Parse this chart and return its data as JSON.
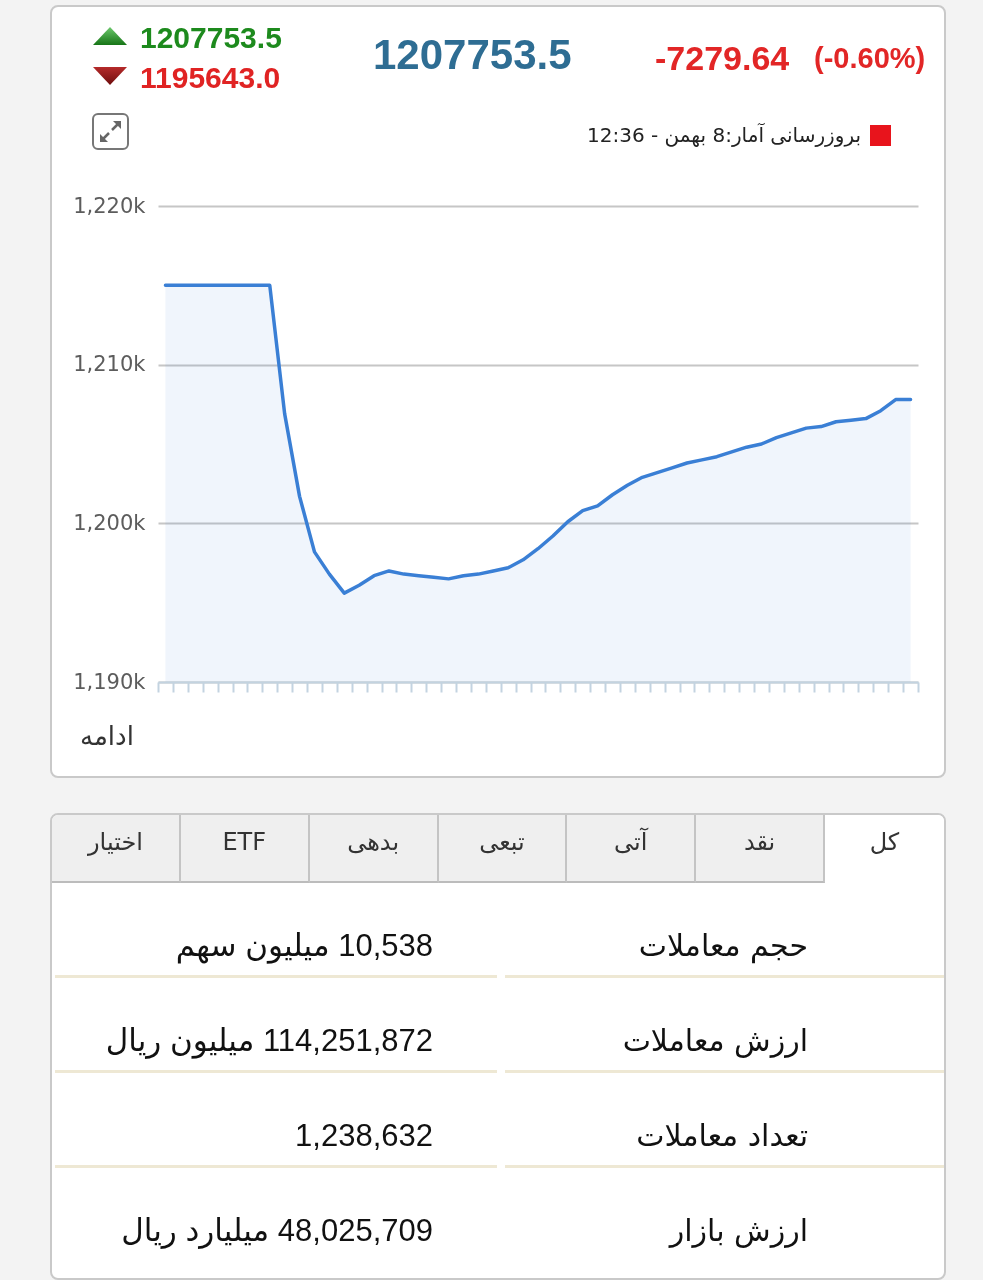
{
  "chart_data": [
    {
      "type": "area",
      "categories": [
        null,
        null,
        null,
        null,
        null,
        null,
        null,
        null,
        null,
        null,
        null,
        null,
        null,
        null,
        null,
        null,
        null,
        null,
        null,
        null,
        null,
        null,
        null,
        null,
        null,
        null,
        null,
        null,
        null,
        null,
        null,
        null,
        null,
        null,
        null,
        null,
        null,
        null,
        null,
        null,
        null,
        null,
        null,
        null,
        null,
        null,
        null,
        null,
        null,
        null,
        null
      ],
      "series": [
        {
          "color": "#3a7fd5",
          "values": [
            1215000,
            1215000,
            1215000,
            1215000,
            1215000,
            1215000,
            1215000,
            1215000,
            1206900,
            1201700,
            1198200,
            1196800,
            1195600,
            1196100,
            1196700,
            1197000,
            1196800,
            1196700,
            1196600,
            1196500,
            1196700,
            1196800,
            1197000,
            1197200,
            1197700,
            1198400,
            1199200,
            1200100,
            1200800,
            1201100,
            1201800,
            1202400,
            1202900,
            1203200,
            1203500,
            1203800,
            1204000,
            1204200,
            1204500,
            1204800,
            1205000,
            1205400,
            1205700,
            1206000,
            1206100,
            1206400,
            1206500,
            1206600,
            1207100,
            1207800,
            1207800
          ]
        }
      ],
      "ylim": [
        1190000,
        1220000
      ],
      "yticks": [
        {
          "value": 1190000,
          "label": "1,190k"
        },
        {
          "value": 1200000,
          "label": "1,200k"
        },
        {
          "value": 1210000,
          "label": "1,210k"
        },
        {
          "value": 1220000,
          "label": "1,220k"
        }
      ],
      "grid": "y",
      "annotations": [
        "1207753.5",
        "1195643.0",
        "1207753.5",
        "-7279.64",
        "(-0.60%)",
        "بروزرسانی آمار:8 بهمن - 12:36",
        "ادامه"
      ]
    },
    {
      "type": "other",
      "annotations": [
        "کل",
        "نقد",
        "آتی",
        "تبعی",
        "بدهی",
        "ETF",
        "اختیار"
      ]
    },
    {
      "type": "other",
      "annotations": [
        "حجم معاملات",
        "10,538 میلیون سهم",
        "ارزش معاملات",
        "114,251,872 میلیون ریال",
        "تعداد معاملات",
        "1,238,632",
        "ارزش بازار",
        "48,025,709 میلیارد ریال"
      ]
    }
  ]
}
